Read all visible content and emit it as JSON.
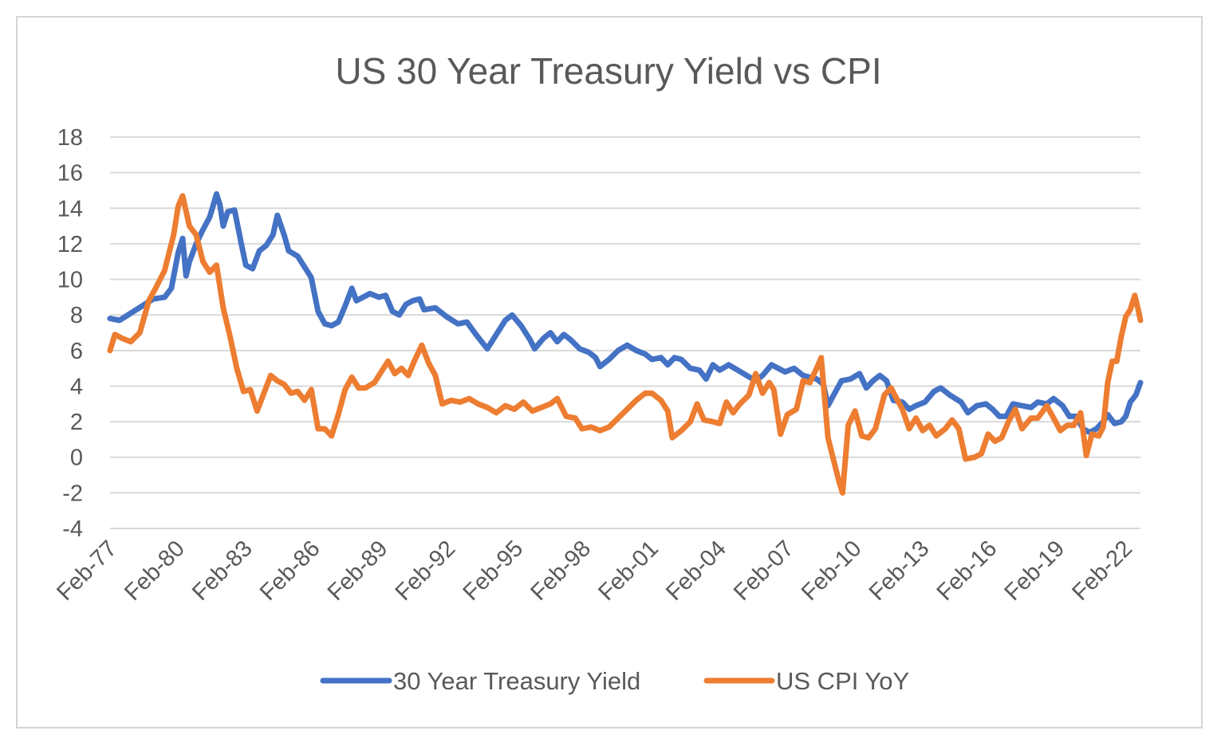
{
  "chart_data": {
    "type": "line",
    "title": "US 30 Year Treasury Yield vs CPI",
    "xlabel": "",
    "ylabel": "",
    "ylim": [
      -4,
      18
    ],
    "yticks": [
      18,
      16,
      14,
      12,
      10,
      8,
      6,
      4,
      2,
      0,
      -2,
      -4
    ],
    "xlim": [
      1977.083,
      2022.75
    ],
    "xticks": [
      {
        "label": "Feb-77",
        "value": 1977.083
      },
      {
        "label": "Feb-80",
        "value": 1980.083
      },
      {
        "label": "Feb-83",
        "value": 1983.083
      },
      {
        "label": "Feb-86",
        "value": 1986.083
      },
      {
        "label": "Feb-89",
        "value": 1989.083
      },
      {
        "label": "Feb-92",
        "value": 1992.083
      },
      {
        "label": "Feb-95",
        "value": 1995.083
      },
      {
        "label": "Feb-98",
        "value": 1998.083
      },
      {
        "label": "Feb-01",
        "value": 2001.083
      },
      {
        "label": "Feb-04",
        "value": 2004.083
      },
      {
        "label": "Feb-07",
        "value": 2007.083
      },
      {
        "label": "Feb-10",
        "value": 2010.083
      },
      {
        "label": "Feb-13",
        "value": 2013.083
      },
      {
        "label": "Feb-16",
        "value": 2016.083
      },
      {
        "label": "Feb-19",
        "value": 2019.083
      },
      {
        "label": "Feb-22",
        "value": 2022.083
      }
    ],
    "legend_position": "bottom",
    "series": [
      {
        "name": "30 Year Treasury Yield",
        "color": "#4472c4",
        "points": [
          [
            1977.08,
            7.8
          ],
          [
            1977.5,
            7.7
          ],
          [
            1978.0,
            8.1
          ],
          [
            1978.5,
            8.5
          ],
          [
            1979.0,
            8.9
          ],
          [
            1979.5,
            9.0
          ],
          [
            1979.8,
            9.5
          ],
          [
            1980.1,
            11.5
          ],
          [
            1980.3,
            12.3
          ],
          [
            1980.45,
            10.2
          ],
          [
            1980.6,
            11.0
          ],
          [
            1980.9,
            12.0
          ],
          [
            1981.2,
            12.8
          ],
          [
            1981.5,
            13.5
          ],
          [
            1981.8,
            14.8
          ],
          [
            1981.95,
            14.2
          ],
          [
            1982.1,
            13.0
          ],
          [
            1982.3,
            13.8
          ],
          [
            1982.6,
            13.9
          ],
          [
            1982.9,
            12.0
          ],
          [
            1983.1,
            10.8
          ],
          [
            1983.4,
            10.6
          ],
          [
            1983.7,
            11.6
          ],
          [
            1984.0,
            11.9
          ],
          [
            1984.3,
            12.5
          ],
          [
            1984.5,
            13.6
          ],
          [
            1984.8,
            12.5
          ],
          [
            1985.0,
            11.6
          ],
          [
            1985.4,
            11.3
          ],
          [
            1985.7,
            10.7
          ],
          [
            1986.0,
            10.1
          ],
          [
            1986.3,
            8.2
          ],
          [
            1986.6,
            7.5
          ],
          [
            1986.9,
            7.4
          ],
          [
            1987.2,
            7.6
          ],
          [
            1987.5,
            8.5
          ],
          [
            1987.8,
            9.5
          ],
          [
            1988.0,
            8.8
          ],
          [
            1988.3,
            9.0
          ],
          [
            1988.6,
            9.2
          ],
          [
            1989.0,
            9.0
          ],
          [
            1989.3,
            9.1
          ],
          [
            1989.6,
            8.2
          ],
          [
            1989.9,
            8.0
          ],
          [
            1990.2,
            8.6
          ],
          [
            1990.5,
            8.8
          ],
          [
            1990.8,
            8.9
          ],
          [
            1991.0,
            8.3
          ],
          [
            1991.5,
            8.4
          ],
          [
            1992.0,
            7.9
          ],
          [
            1992.5,
            7.5
          ],
          [
            1992.9,
            7.6
          ],
          [
            1993.3,
            6.9
          ],
          [
            1993.8,
            6.1
          ],
          [
            1994.2,
            6.9
          ],
          [
            1994.6,
            7.7
          ],
          [
            1994.9,
            8.0
          ],
          [
            1995.3,
            7.4
          ],
          [
            1995.7,
            6.6
          ],
          [
            1995.9,
            6.1
          ],
          [
            1996.3,
            6.7
          ],
          [
            1996.6,
            7.0
          ],
          [
            1996.9,
            6.5
          ],
          [
            1997.2,
            6.9
          ],
          [
            1997.5,
            6.6
          ],
          [
            1997.9,
            6.1
          ],
          [
            1998.3,
            5.9
          ],
          [
            1998.6,
            5.6
          ],
          [
            1998.8,
            5.1
          ],
          [
            1999.2,
            5.5
          ],
          [
            1999.6,
            6.0
          ],
          [
            2000.0,
            6.3
          ],
          [
            2000.4,
            6.0
          ],
          [
            2000.8,
            5.8
          ],
          [
            2001.1,
            5.5
          ],
          [
            2001.5,
            5.6
          ],
          [
            2001.8,
            5.2
          ],
          [
            2002.1,
            5.6
          ],
          [
            2002.4,
            5.5
          ],
          [
            2002.8,
            5.0
          ],
          [
            2003.2,
            4.9
          ],
          [
            2003.5,
            4.4
          ],
          [
            2003.8,
            5.2
          ],
          [
            2004.1,
            4.9
          ],
          [
            2004.5,
            5.2
          ],
          [
            2004.9,
            4.9
          ],
          [
            2005.3,
            4.6
          ],
          [
            2005.7,
            4.3
          ],
          [
            2006.0,
            4.6
          ],
          [
            2006.4,
            5.2
          ],
          [
            2006.7,
            5.0
          ],
          [
            2007.0,
            4.8
          ],
          [
            2007.4,
            5.0
          ],
          [
            2007.8,
            4.6
          ],
          [
            2008.1,
            4.5
          ],
          [
            2008.4,
            4.4
          ],
          [
            2008.7,
            4.1
          ],
          [
            2008.9,
            2.9
          ],
          [
            2009.2,
            3.6
          ],
          [
            2009.5,
            4.3
          ],
          [
            2009.9,
            4.4
          ],
          [
            2010.3,
            4.7
          ],
          [
            2010.6,
            3.9
          ],
          [
            2010.9,
            4.3
          ],
          [
            2011.2,
            4.6
          ],
          [
            2011.5,
            4.3
          ],
          [
            2011.8,
            3.2
          ],
          [
            2012.2,
            3.1
          ],
          [
            2012.5,
            2.7
          ],
          [
            2012.8,
            2.9
          ],
          [
            2013.2,
            3.1
          ],
          [
            2013.6,
            3.7
          ],
          [
            2013.9,
            3.9
          ],
          [
            2014.3,
            3.5
          ],
          [
            2014.8,
            3.1
          ],
          [
            2015.1,
            2.5
          ],
          [
            2015.5,
            2.9
          ],
          [
            2015.9,
            3.0
          ],
          [
            2016.2,
            2.7
          ],
          [
            2016.5,
            2.3
          ],
          [
            2016.8,
            2.3
          ],
          [
            2017.1,
            3.0
          ],
          [
            2017.5,
            2.9
          ],
          [
            2017.9,
            2.8
          ],
          [
            2018.2,
            3.1
          ],
          [
            2018.6,
            3.0
          ],
          [
            2018.9,
            3.3
          ],
          [
            2019.3,
            2.9
          ],
          [
            2019.6,
            2.3
          ],
          [
            2019.9,
            2.3
          ],
          [
            2020.2,
            1.6
          ],
          [
            2020.5,
            1.4
          ],
          [
            2020.8,
            1.6
          ],
          [
            2021.1,
            2.0
          ],
          [
            2021.3,
            2.4
          ],
          [
            2021.6,
            1.9
          ],
          [
            2021.9,
            2.0
          ],
          [
            2022.1,
            2.3
          ],
          [
            2022.3,
            3.1
          ],
          [
            2022.55,
            3.5
          ],
          [
            2022.75,
            4.2
          ]
        ]
      },
      {
        "name": "US CPI YoY",
        "color": "#ed7d31",
        "points": [
          [
            1977.08,
            6.0
          ],
          [
            1977.3,
            6.9
          ],
          [
            1977.6,
            6.7
          ],
          [
            1978.0,
            6.5
          ],
          [
            1978.4,
            7.0
          ],
          [
            1978.8,
            8.8
          ],
          [
            1979.1,
            9.5
          ],
          [
            1979.5,
            10.5
          ],
          [
            1979.9,
            12.5
          ],
          [
            1980.1,
            14.1
          ],
          [
            1980.3,
            14.7
          ],
          [
            1980.6,
            13.0
          ],
          [
            1980.9,
            12.5
          ],
          [
            1981.2,
            11.0
          ],
          [
            1981.5,
            10.4
          ],
          [
            1981.8,
            10.8
          ],
          [
            1982.1,
            8.4
          ],
          [
            1982.4,
            6.8
          ],
          [
            1982.7,
            5.0
          ],
          [
            1983.0,
            3.7
          ],
          [
            1983.3,
            3.8
          ],
          [
            1983.6,
            2.6
          ],
          [
            1983.9,
            3.6
          ],
          [
            1984.2,
            4.6
          ],
          [
            1984.5,
            4.3
          ],
          [
            1984.8,
            4.1
          ],
          [
            1985.1,
            3.6
          ],
          [
            1985.4,
            3.7
          ],
          [
            1985.7,
            3.2
          ],
          [
            1986.0,
            3.8
          ],
          [
            1986.3,
            1.6
          ],
          [
            1986.6,
            1.6
          ],
          [
            1986.9,
            1.2
          ],
          [
            1987.2,
            2.4
          ],
          [
            1987.5,
            3.8
          ],
          [
            1987.8,
            4.5
          ],
          [
            1988.1,
            3.9
          ],
          [
            1988.4,
            3.9
          ],
          [
            1988.8,
            4.2
          ],
          [
            1989.1,
            4.8
          ],
          [
            1989.4,
            5.4
          ],
          [
            1989.7,
            4.7
          ],
          [
            1990.0,
            5.0
          ],
          [
            1990.3,
            4.6
          ],
          [
            1990.6,
            5.5
          ],
          [
            1990.9,
            6.3
          ],
          [
            1991.2,
            5.3
          ],
          [
            1991.5,
            4.6
          ],
          [
            1991.8,
            3.0
          ],
          [
            1992.2,
            3.2
          ],
          [
            1992.6,
            3.1
          ],
          [
            1993.0,
            3.3
          ],
          [
            1993.4,
            3.0
          ],
          [
            1993.8,
            2.8
          ],
          [
            1994.2,
            2.5
          ],
          [
            1994.6,
            2.9
          ],
          [
            1995.0,
            2.7
          ],
          [
            1995.4,
            3.1
          ],
          [
            1995.8,
            2.6
          ],
          [
            1996.2,
            2.8
          ],
          [
            1996.6,
            3.0
          ],
          [
            1996.9,
            3.3
          ],
          [
            1997.3,
            2.3
          ],
          [
            1997.7,
            2.2
          ],
          [
            1998.0,
            1.6
          ],
          [
            1998.4,
            1.7
          ],
          [
            1998.8,
            1.5
          ],
          [
            1999.2,
            1.7
          ],
          [
            1999.6,
            2.2
          ],
          [
            2000.0,
            2.7
          ],
          [
            2000.4,
            3.2
          ],
          [
            2000.8,
            3.6
          ],
          [
            2001.1,
            3.6
          ],
          [
            2001.5,
            3.2
          ],
          [
            2001.8,
            2.6
          ],
          [
            2002.0,
            1.1
          ],
          [
            2002.4,
            1.5
          ],
          [
            2002.8,
            2.0
          ],
          [
            2003.1,
            3.0
          ],
          [
            2003.4,
            2.1
          ],
          [
            2003.8,
            2.0
          ],
          [
            2004.1,
            1.9
          ],
          [
            2004.4,
            3.1
          ],
          [
            2004.7,
            2.5
          ],
          [
            2005.0,
            3.0
          ],
          [
            2005.4,
            3.5
          ],
          [
            2005.7,
            4.7
          ],
          [
            2006.0,
            3.6
          ],
          [
            2006.3,
            4.2
          ],
          [
            2006.5,
            3.8
          ],
          [
            2006.8,
            1.3
          ],
          [
            2007.1,
            2.4
          ],
          [
            2007.5,
            2.7
          ],
          [
            2007.8,
            4.3
          ],
          [
            2008.1,
            4.2
          ],
          [
            2008.4,
            5.0
          ],
          [
            2008.6,
            5.6
          ],
          [
            2008.9,
            1.1
          ],
          [
            2009.2,
            -0.4
          ],
          [
            2009.4,
            -1.4
          ],
          [
            2009.55,
            -2.0
          ],
          [
            2009.8,
            1.8
          ],
          [
            2010.1,
            2.6
          ],
          [
            2010.4,
            1.2
          ],
          [
            2010.7,
            1.1
          ],
          [
            2011.0,
            1.6
          ],
          [
            2011.4,
            3.5
          ],
          [
            2011.7,
            3.9
          ],
          [
            2011.9,
            3.4
          ],
          [
            2012.2,
            2.7
          ],
          [
            2012.5,
            1.6
          ],
          [
            2012.8,
            2.2
          ],
          [
            2013.1,
            1.5
          ],
          [
            2013.4,
            1.8
          ],
          [
            2013.7,
            1.2
          ],
          [
            2014.1,
            1.6
          ],
          [
            2014.4,
            2.1
          ],
          [
            2014.7,
            1.6
          ],
          [
            2015.0,
            -0.1
          ],
          [
            2015.4,
            0.0
          ],
          [
            2015.7,
            0.2
          ],
          [
            2016.0,
            1.3
          ],
          [
            2016.3,
            0.9
          ],
          [
            2016.6,
            1.1
          ],
          [
            2016.9,
            2.0
          ],
          [
            2017.2,
            2.7
          ],
          [
            2017.5,
            1.6
          ],
          [
            2017.9,
            2.2
          ],
          [
            2018.2,
            2.2
          ],
          [
            2018.6,
            2.9
          ],
          [
            2018.9,
            2.2
          ],
          [
            2019.2,
            1.5
          ],
          [
            2019.5,
            1.8
          ],
          [
            2019.8,
            1.8
          ],
          [
            2020.1,
            2.5
          ],
          [
            2020.35,
            0.1
          ],
          [
            2020.6,
            1.3
          ],
          [
            2020.9,
            1.2
          ],
          [
            2021.1,
            1.7
          ],
          [
            2021.3,
            4.2
          ],
          [
            2021.5,
            5.4
          ],
          [
            2021.7,
            5.4
          ],
          [
            2021.9,
            6.8
          ],
          [
            2022.1,
            7.9
          ],
          [
            2022.3,
            8.3
          ],
          [
            2022.5,
            9.1
          ],
          [
            2022.65,
            8.3
          ],
          [
            2022.75,
            7.7
          ]
        ]
      }
    ]
  }
}
